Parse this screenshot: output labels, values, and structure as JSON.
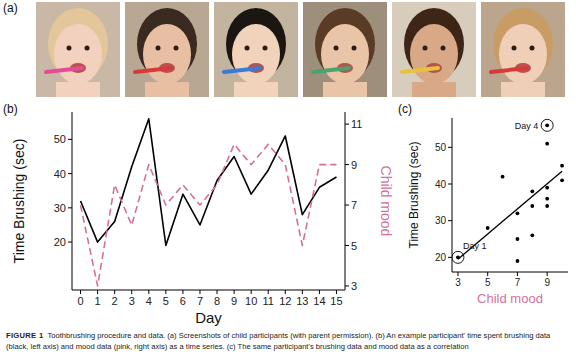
{
  "figure": {
    "panel_labels": [
      "(a)",
      "(b)",
      "(c)"
    ],
    "caption_label": "FIGURE 1",
    "caption": "Toothbrushing procedure and data. (a) Screenshots of child participants (with parent permission). (b) An example participant' time spent brushing data (black, left axis) and mood data (pink, right axis) as a time series. (c) The same participant's brushing data and mood data as a correlation"
  },
  "chart_data": [
    {
      "type": "line",
      "x": [
        0,
        1,
        2,
        3,
        4,
        5,
        6,
        7,
        8,
        9,
        10,
        11,
        12,
        13,
        14,
        15
      ],
      "series": [
        {
          "color": "#000000",
          "line_style": "solid",
          "axis": "y",
          "values": [
            32,
            20,
            26,
            42,
            56,
            19,
            34,
            25,
            38,
            45,
            34,
            41,
            51,
            28,
            36,
            39
          ]
        },
        {
          "color": "#d4709c",
          "line_style": "dashed",
          "axis": "y2",
          "values": [
            7,
            3,
            8,
            6,
            9,
            7,
            8,
            7,
            8,
            10,
            9,
            10,
            9,
            5,
            9,
            9
          ]
        }
      ],
      "x_label": "Day",
      "y_label": "Time Brushing (sec)",
      "y2_label": "Child mood",
      "xlim": [
        -0.5,
        15.5
      ],
      "xticks": [
        0,
        1,
        2,
        3,
        4,
        5,
        6,
        7,
        8,
        9,
        10,
        11,
        12,
        13,
        14,
        15
      ],
      "ylim": [
        6,
        58
      ],
      "yticks": [
        20,
        30,
        40,
        50
      ],
      "y2lim": [
        2.8,
        11.6
      ],
      "y2ticks": [
        3,
        5,
        7,
        9,
        11
      ],
      "grid": false
    },
    {
      "type": "scatter",
      "x": [
        7,
        3,
        8,
        6,
        9,
        7,
        8,
        7,
        8,
        10,
        9,
        10,
        9,
        5,
        9,
        9
      ],
      "values": [
        32,
        20,
        26,
        42,
        56,
        19,
        34,
        25,
        38,
        45,
        34,
        41,
        51,
        28,
        36,
        39
      ],
      "color": "#000000",
      "marker": "circle",
      "trend_line": {
        "x": [
          3,
          10
        ],
        "values": [
          19.5,
          43.5
        ]
      },
      "annotations": [
        {
          "text": "Day 1",
          "x": 3,
          "y": 20
        },
        {
          "text": "Day 4",
          "x": 9,
          "y": 56
        }
      ],
      "x_label": "Child mood",
      "y_label": "Time Brushing (sec)",
      "xlim": [
        2.6,
        10.4
      ],
      "xticks": [
        3,
        5,
        7,
        9
      ],
      "ylim": [
        16,
        58
      ],
      "yticks": [
        20,
        30,
        40,
        50
      ],
      "grid": false
    }
  ]
}
